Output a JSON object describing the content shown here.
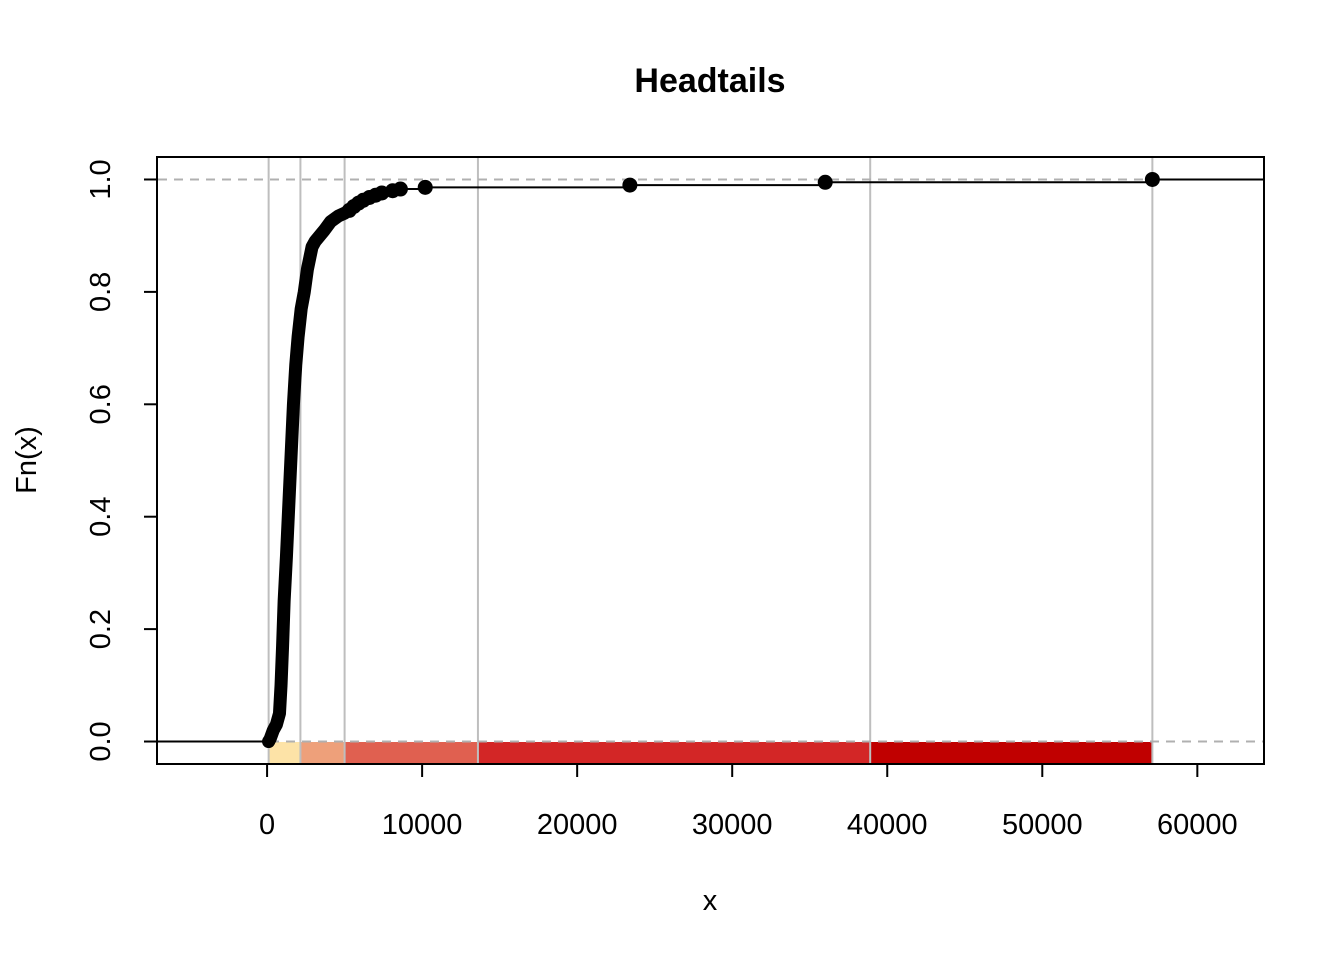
{
  "chart_data": {
    "type": "step",
    "title": "Headtails",
    "xlabel": "x",
    "ylabel": "Fn(x)",
    "xlim": [
      -7100,
      64300
    ],
    "ylim": [
      -0.04,
      1.04
    ],
    "x_ticks": [
      0,
      10000,
      20000,
      30000,
      40000,
      50000,
      60000
    ],
    "x_tick_labels": [
      "0",
      "10000",
      "20000",
      "30000",
      "40000",
      "50000",
      "60000"
    ],
    "y_ticks": [
      0.0,
      0.2,
      0.4,
      0.6,
      0.8,
      1.0
    ],
    "y_tick_labels": [
      "0.0",
      "0.2",
      "0.4",
      "0.6",
      "0.8",
      "1.0"
    ],
    "reference_lines_y": [
      0.0,
      1.0
    ],
    "break_lines_x": [
      100,
      2150,
      5000,
      13600,
      38900,
      57100
    ],
    "class_intervals": [
      {
        "from": 100,
        "to": 2150,
        "color": "#FDE3A7"
      },
      {
        "from": 2150,
        "to": 5000,
        "color": "#EEA07A"
      },
      {
        "from": 5000,
        "to": 13600,
        "color": "#E06050"
      },
      {
        "from": 13600,
        "to": 38900,
        "color": "#D32626"
      },
      {
        "from": 38900,
        "to": 57100,
        "color": "#C00000"
      }
    ],
    "dense_curve": [
      [
        100,
        0.0
      ],
      [
        200,
        0.005
      ],
      [
        400,
        0.02
      ],
      [
        600,
        0.03
      ],
      [
        800,
        0.05
      ],
      [
        900,
        0.1
      ],
      [
        1000,
        0.17
      ],
      [
        1100,
        0.25
      ],
      [
        1250,
        0.33
      ],
      [
        1400,
        0.42
      ],
      [
        1550,
        0.51
      ],
      [
        1700,
        0.6
      ],
      [
        1850,
        0.67
      ],
      [
        2000,
        0.72
      ],
      [
        2200,
        0.77
      ],
      [
        2400,
        0.8
      ],
      [
        2600,
        0.84
      ],
      [
        2750,
        0.86
      ],
      [
        2900,
        0.88
      ],
      [
        3100,
        0.89
      ],
      [
        3400,
        0.9
      ],
      [
        3700,
        0.91
      ],
      [
        4100,
        0.925
      ],
      [
        4600,
        0.935
      ],
      [
        5000,
        0.94
      ]
    ],
    "points": [
      {
        "x": 5300,
        "y": 0.945
      },
      {
        "x": 5600,
        "y": 0.952
      },
      {
        "x": 5900,
        "y": 0.958
      },
      {
        "x": 6200,
        "y": 0.963
      },
      {
        "x": 6600,
        "y": 0.968
      },
      {
        "x": 7000,
        "y": 0.972
      },
      {
        "x": 7400,
        "y": 0.976
      },
      {
        "x": 8100,
        "y": 0.98
      },
      {
        "x": 8600,
        "y": 0.983
      },
      {
        "x": 10200,
        "y": 0.986
      },
      {
        "x": 23400,
        "y": 0.99
      },
      {
        "x": 36000,
        "y": 0.995
      },
      {
        "x": 57100,
        "y": 1.0
      }
    ],
    "grid": false,
    "legend": "none"
  }
}
